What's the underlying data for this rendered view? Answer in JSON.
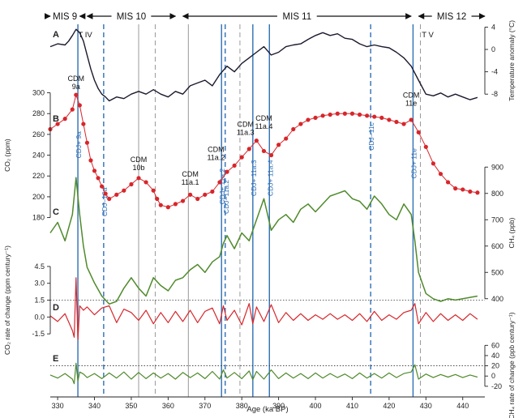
{
  "colors": {
    "temperature": "#1a1a2e",
    "co2": "#d7262b",
    "ch4": "#4f8a2b",
    "cdj_line": "#2f6fb5",
    "cdm_line": "#9a9a9a",
    "axis": "#222222",
    "mis_arrow": "#111111"
  },
  "chart_data": {
    "type": "line",
    "x": {
      "label": "Age (ka BP)",
      "lim": [
        328,
        446
      ],
      "ticks": [
        330,
        340,
        350,
        360,
        370,
        380,
        390,
        400,
        410,
        420,
        430,
        440
      ]
    },
    "mis": [
      {
        "label": "MIS 9",
        "from": 328,
        "to": 336
      },
      {
        "label": "MIS 10",
        "from": 338,
        "to": 362
      },
      {
        "label": "MIS 11",
        "from": 364,
        "to": 426
      },
      {
        "label": "MIS 12",
        "from": 428,
        "to": 446
      }
    ],
    "terminations": [
      {
        "label": "T IV",
        "x": 337.5
      },
      {
        "label": "T V",
        "x": 430.5
      }
    ],
    "panels": [
      {
        "id": "A",
        "label": "A",
        "series": "temperature",
        "axis_side": "right",
        "ylabel": "Temperature anomaly (°C)",
        "ylim": [
          -10,
          4.5
        ],
        "ticks": [
          4,
          0,
          -4,
          -8
        ]
      },
      {
        "id": "B",
        "label": "B",
        "series": "co2",
        "axis_side": "left",
        "ylabel": "CO₂ (ppm)",
        "ylim": [
          175,
          302
        ],
        "ticks": [
          180,
          200,
          220,
          240,
          260,
          280,
          300
        ]
      },
      {
        "id": "C",
        "label": "C",
        "series": "ch4",
        "axis_side": "right",
        "ylabel": "CH₄ (ppb)",
        "ylim": [
          350,
          950
        ],
        "ticks": [
          400,
          500,
          600,
          700,
          800,
          900
        ]
      },
      {
        "id": "D",
        "label": "D",
        "series": "co2_rate",
        "axis_side": "left",
        "ylabel": "CO₂ rate of change (ppm century⁻¹)",
        "ylim": [
          -2.5,
          5
        ],
        "ticks": [
          -1.5,
          0.0,
          1.5,
          3.0,
          4.5
        ],
        "threshold": 1.5
      },
      {
        "id": "E",
        "label": "E",
        "series": "ch4_rate",
        "axis_side": "right",
        "ylabel": "CH₄ rate of change (ppb century⁻¹)",
        "ylim": [
          -25,
          70
        ],
        "ticks": [
          -20,
          0,
          20,
          40,
          60
        ],
        "threshold": 20
      }
    ],
    "series": {
      "temperature": {
        "x": [
          328,
          330,
          332,
          333,
          334,
          335,
          336,
          337,
          338,
          339,
          340,
          341,
          342,
          343,
          344,
          346,
          348,
          350,
          352,
          354,
          356,
          358,
          360,
          362,
          364,
          366,
          368,
          370,
          372,
          374,
          376,
          378,
          380,
          382,
          384,
          386,
          388,
          390,
          392,
          394,
          396,
          398,
          400,
          402,
          404,
          406,
          408,
          410,
          412,
          414,
          416,
          418,
          420,
          422,
          424,
          426,
          428,
          430,
          432,
          434,
          436,
          438,
          440,
          442,
          444
        ],
        "y": [
          0.5,
          1.0,
          0.8,
          1.5,
          2.5,
          3.6,
          3.0,
          1.5,
          -1.0,
          -3.5,
          -5.5,
          -7.0,
          -8.0,
          -8.5,
          -9.2,
          -8.5,
          -8.8,
          -8.0,
          -7.5,
          -8.0,
          -7.2,
          -8.0,
          -8.5,
          -7.5,
          -8.0,
          -6.5,
          -6.0,
          -5.5,
          -6.5,
          -4.5,
          -3.0,
          -4.0,
          -2.5,
          -1.5,
          -0.5,
          0.5,
          -1.0,
          -0.5,
          0.5,
          0.8,
          1.0,
          1.8,
          2.5,
          3.0,
          2.5,
          2.8,
          2.0,
          1.8,
          1.0,
          0.5,
          0.8,
          0.5,
          0.3,
          -0.5,
          -1.5,
          -3.0,
          -5.5,
          -8.0,
          -8.3,
          -7.8,
          -8.5,
          -8.0,
          -8.5,
          -9.0,
          -8.6
        ]
      },
      "co2": {
        "x": [
          328,
          330,
          332,
          334,
          335,
          336,
          337,
          338,
          339,
          340,
          341,
          342,
          343,
          344,
          346,
          348,
          350,
          352,
          354,
          356,
          357,
          358,
          360,
          362,
          364,
          366,
          368,
          370,
          372,
          374,
          376,
          378,
          380,
          382,
          384,
          386,
          388,
          390,
          392,
          394,
          396,
          398,
          400,
          402,
          404,
          406,
          408,
          410,
          412,
          414,
          416,
          418,
          420,
          422,
          424,
          426,
          428,
          430,
          432,
          434,
          436,
          438,
          440,
          442,
          444
        ],
        "y": [
          265,
          270,
          275,
          284,
          298,
          288,
          270,
          252,
          235,
          225,
          218,
          210,
          203,
          198,
          202,
          206,
          212,
          218,
          214,
          206,
          198,
          192,
          190,
          193,
          196,
          202,
          198,
          202,
          205,
          214,
          224,
          230,
          238,
          246,
          254,
          244,
          240,
          250,
          256,
          265,
          270,
          274,
          276,
          278,
          279,
          280,
          280,
          280,
          279,
          278,
          277,
          276,
          274,
          272,
          270,
          274,
          262,
          248,
          232,
          222,
          214,
          208,
          207,
          205,
          204
        ]
      },
      "ch4": {
        "x": [
          328,
          330,
          332,
          334,
          335,
          336,
          337,
          338,
          340,
          342,
          344,
          346,
          348,
          350,
          352,
          354,
          356,
          358,
          360,
          362,
          364,
          366,
          368,
          370,
          372,
          374,
          375,
          376,
          378,
          380,
          382,
          384,
          386,
          388,
          390,
          392,
          394,
          396,
          398,
          400,
          402,
          404,
          406,
          408,
          410,
          412,
          414,
          416,
          418,
          420,
          422,
          424,
          426,
          427,
          428,
          430,
          432,
          434,
          436,
          438,
          440,
          442,
          444
        ],
        "y": [
          650,
          690,
          620,
          720,
          860,
          720,
          600,
          520,
          460,
          410,
          380,
          390,
          440,
          480,
          440,
          410,
          480,
          450,
          430,
          470,
          480,
          510,
          530,
          500,
          540,
          560,
          610,
          640,
          590,
          650,
          620,
          700,
          780,
          660,
          700,
          720,
          690,
          740,
          760,
          730,
          760,
          790,
          800,
          810,
          780,
          770,
          740,
          790,
          760,
          720,
          700,
          760,
          720,
          620,
          500,
          420,
          400,
          390,
          400,
          395,
          400,
          405,
          410
        ]
      },
      "co2_rate": {
        "note_points": "mostly small oscillations around 0 with spikes",
        "x": [
          328,
          330,
          332,
          334,
          334.5,
          335,
          335.5,
          336,
          337,
          338,
          340,
          342,
          344,
          346,
          348,
          350,
          352,
          354,
          356,
          358,
          360,
          362,
          364,
          366,
          368,
          370,
          372,
          374,
          375,
          376,
          378,
          380,
          382,
          383,
          384,
          386,
          388,
          390,
          392,
          394,
          396,
          398,
          400,
          402,
          404,
          406,
          408,
          410,
          412,
          414,
          416,
          418,
          420,
          422,
          424,
          426,
          427,
          428,
          430,
          432,
          434,
          436,
          438,
          440,
          442,
          444
        ],
        "y": [
          0.1,
          -0.4,
          0.3,
          -1.2,
          -1.8,
          3.5,
          -2.0,
          1.0,
          0.6,
          0.9,
          0.2,
          0.8,
          1.0,
          -0.5,
          0.7,
          0.4,
          -0.3,
          0.6,
          -0.6,
          0.4,
          -0.5,
          0.5,
          -0.4,
          0.6,
          -0.5,
          0.5,
          0.8,
          -0.6,
          1.0,
          -0.3,
          0.6,
          -0.7,
          1.2,
          -0.6,
          0.9,
          -0.4,
          1.1,
          -0.5,
          0.4,
          -0.3,
          0.3,
          -0.3,
          0.2,
          -0.2,
          0.3,
          -0.2,
          0.2,
          -0.3,
          0.3,
          -0.4,
          0.5,
          -0.3,
          0.2,
          -0.2,
          0.4,
          0.6,
          1.2,
          -0.6,
          0.4,
          -0.4,
          0.3,
          -0.3,
          0.2,
          -0.3,
          0.3,
          -0.2
        ]
      },
      "ch4_rate": {
        "x": [
          328,
          330,
          332,
          334,
          334.5,
          335,
          335.5,
          336,
          337,
          338,
          340,
          342,
          344,
          346,
          348,
          350,
          352,
          354,
          356,
          358,
          360,
          362,
          364,
          366,
          368,
          370,
          372,
          374,
          375,
          376,
          378,
          380,
          382,
          383,
          384,
          386,
          388,
          390,
          392,
          394,
          396,
          398,
          400,
          402,
          404,
          406,
          408,
          410,
          412,
          414,
          416,
          418,
          420,
          422,
          424,
          426,
          427,
          428,
          430,
          432,
          434,
          436,
          438,
          440,
          442,
          444
        ],
        "y": [
          2,
          -4,
          5,
          -6,
          -15,
          25,
          -10,
          8,
          4,
          -3,
          5,
          -5,
          6,
          -4,
          8,
          -6,
          7,
          -5,
          6,
          -4,
          5,
          -6,
          7,
          -3,
          6,
          -5,
          9,
          -6,
          12,
          -4,
          7,
          -5,
          10,
          -7,
          9,
          -6,
          12,
          -5,
          6,
          -4,
          5,
          -5,
          6,
          -4,
          5,
          -3,
          4,
          -5,
          6,
          -4,
          5,
          -4,
          6,
          -3,
          5,
          8,
          22,
          -6,
          4,
          -3,
          3,
          -2,
          3,
          -3,
          2,
          -2
        ]
      }
    },
    "annotations": [
      {
        "label": "CDM\n9a",
        "x": 335,
        "panel": "B",
        "y": 302
      },
      {
        "label": "CDM\n10b",
        "x": 352,
        "panel": "B",
        "y": 224
      },
      {
        "label": "CDM\n11a.1",
        "x": 366,
        "panel": "B",
        "y": 210
      },
      {
        "label": "CDM\n11a.2",
        "x": 373,
        "panel": "B",
        "y": 234
      },
      {
        "label": "CDM\n11a.3",
        "x": 381,
        "panel": "B",
        "y": 258
      },
      {
        "label": "CDM\n11a.4",
        "x": 386,
        "panel": "B",
        "y": 264
      },
      {
        "label": "CDM\n11e",
        "x": 426,
        "panel": "B",
        "y": 286
      }
    ],
    "vlines": [
      {
        "x": 335.5,
        "style": "solid",
        "color": "cdj",
        "label": "CDJ+ 9a",
        "label_panel": "B",
        "label_y": 250
      },
      {
        "x": 342.5,
        "style": "dashed",
        "color": "cdj",
        "label": "CDJ−10a",
        "label_panel": "B",
        "label_y": 195
      },
      {
        "x": 352,
        "style": "solid",
        "color": "cdm",
        "label": "",
        "label_panel": "",
        "label_y": 0
      },
      {
        "x": 356.5,
        "style": "dashed",
        "color": "cdm",
        "label": "",
        "label_panel": "",
        "label_y": 0
      },
      {
        "x": 365.5,
        "style": "solid",
        "color": "cdm",
        "label": "",
        "label_panel": "",
        "label_y": 0
      },
      {
        "x": 374.5,
        "style": "solid",
        "color": "cdj",
        "label": "CDJ+ 11a.2",
        "label_panel": "B",
        "label_y": 210
      },
      {
        "x": 375.5,
        "style": "dashed",
        "color": "cdj",
        "label": "CDJ−11a.2",
        "label_panel": "B",
        "label_y": 200
      },
      {
        "x": 379.5,
        "style": "dashed",
        "color": "cdm",
        "label": "",
        "label_panel": "",
        "label_y": 0
      },
      {
        "x": 383,
        "style": "solid",
        "color": "cdj",
        "label": "CDJ+ 11a.3",
        "label_panel": "B",
        "label_y": 218
      },
      {
        "x": 387.5,
        "style": "solid",
        "color": "cdj",
        "label": "CDJ+ 11a.4",
        "label_panel": "B",
        "label_y": 218
      },
      {
        "x": 415,
        "style": "dashed",
        "color": "cdj",
        "label": "CDJ−11c",
        "label_panel": "B",
        "label_y": 258
      },
      {
        "x": 426.5,
        "style": "solid",
        "color": "cdj",
        "label": "CDJ+ 11e",
        "label_panel": "B",
        "label_y": 232
      },
      {
        "x": 428.5,
        "style": "dashed",
        "color": "cdm",
        "label": "",
        "label_panel": "",
        "label_y": 0
      }
    ]
  }
}
